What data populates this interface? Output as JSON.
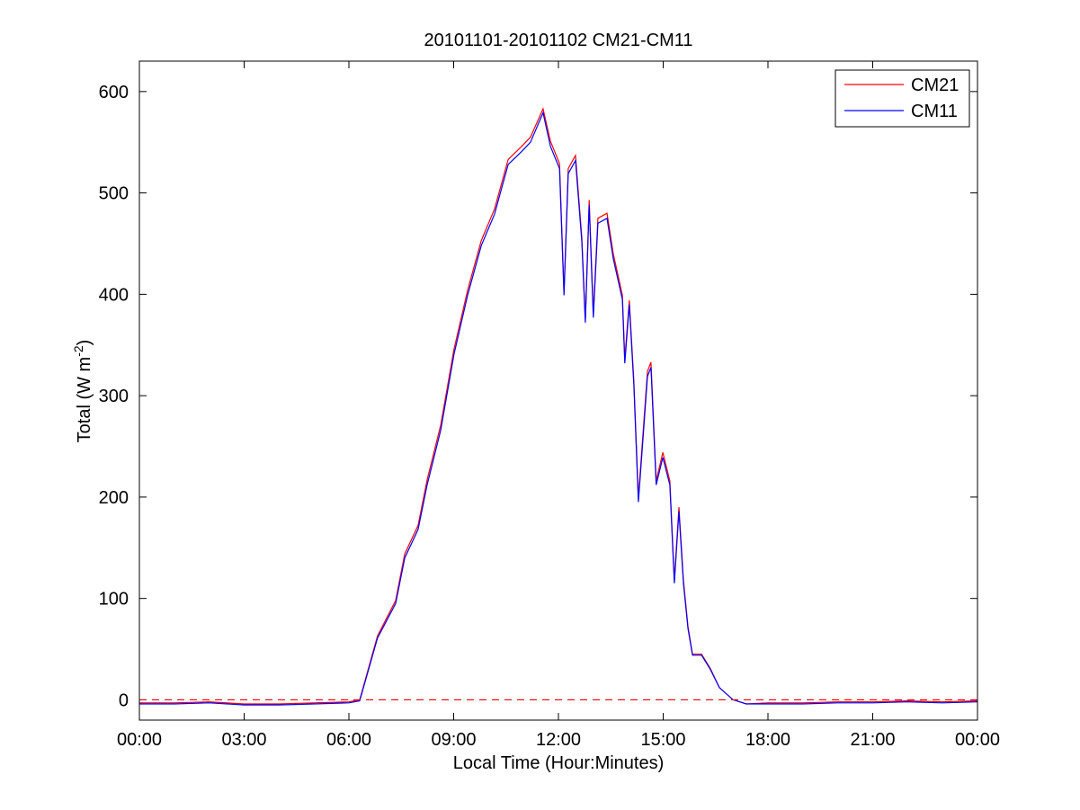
{
  "chart_data": {
    "type": "line",
    "title": "20101101-20101102 CM21-CM11",
    "xlabel": "Local Time (Hour:Minutes)",
    "ylabel_parts": [
      "Total (W m",
      "-2",
      ")"
    ],
    "xlim": [
      0,
      24
    ],
    "xticks": [
      {
        "value": 0,
        "label": "00:00"
      },
      {
        "value": 3,
        "label": "03:00"
      },
      {
        "value": 6,
        "label": "06:00"
      },
      {
        "value": 9,
        "label": "09:00"
      },
      {
        "value": 12,
        "label": "12:00"
      },
      {
        "value": 15,
        "label": "15:00"
      },
      {
        "value": 18,
        "label": "18:00"
      },
      {
        "value": 21,
        "label": "21:00"
      },
      {
        "value": 24,
        "label": "00:00"
      }
    ],
    "ylim": [
      -20,
      630
    ],
    "yticks": [
      0,
      100,
      200,
      300,
      400,
      500,
      600
    ],
    "reference_line": {
      "value": 0,
      "color": "#ff0000",
      "style": "dashed"
    },
    "legend": "top-right",
    "x": [
      0,
      1,
      2,
      3,
      4,
      5,
      6,
      6.31,
      6.82,
      7.34,
      7.6,
      7.98,
      8.24,
      8.63,
      9.01,
      9.4,
      9.79,
      10.17,
      10.56,
      10.95,
      11.2,
      11.56,
      11.77,
      12.03,
      12.16,
      12.28,
      12.49,
      12.67,
      12.77,
      12.88,
      13.0,
      13.13,
      13.39,
      13.57,
      13.83,
      13.9,
      14.03,
      14.16,
      14.29,
      14.42,
      14.55,
      14.65,
      14.8,
      14.99,
      15.19,
      15.32,
      15.45,
      15.58,
      15.71,
      15.84,
      16.1,
      16.35,
      16.61,
      17.0,
      17.38,
      18,
      19,
      20,
      21,
      22,
      23,
      24
    ],
    "series": [
      {
        "name": "CM21",
        "color": "#ff0000",
        "values": [
          -3,
          -3,
          -2,
          -4,
          -4,
          -3,
          -2,
          0,
          63,
          98,
          144,
          172,
          217,
          271,
          346,
          404,
          453,
          484,
          533,
          546,
          555,
          583,
          551,
          529,
          402,
          524,
          537,
          456,
          375,
          493,
          381,
          475,
          480,
          440,
          399,
          336,
          394,
          314,
          199,
          262,
          324,
          333,
          216,
          244,
          216,
          118,
          190,
          118,
          72,
          45,
          45,
          31,
          12,
          0,
          -4,
          -3,
          -3,
          -2,
          -2,
          -1,
          -2,
          -1
        ]
      },
      {
        "name": "CM11",
        "color": "#0000ff",
        "values": [
          -4,
          -4,
          -3,
          -5,
          -5,
          -4,
          -3,
          -1,
          61,
          95,
          140,
          168,
          212,
          266,
          341,
          399,
          448,
          479,
          528,
          541,
          550,
          579,
          546,
          524,
          399,
          519,
          532,
          452,
          372,
          488,
          377,
          470,
          475,
          435,
          395,
          332,
          390,
          310,
          195,
          257,
          319,
          328,
          212,
          239,
          212,
          115,
          186,
          115,
          70,
          44,
          44,
          30,
          12,
          0,
          -4,
          -4,
          -4,
          -3,
          -3,
          -2,
          -3,
          -2
        ]
      }
    ]
  }
}
